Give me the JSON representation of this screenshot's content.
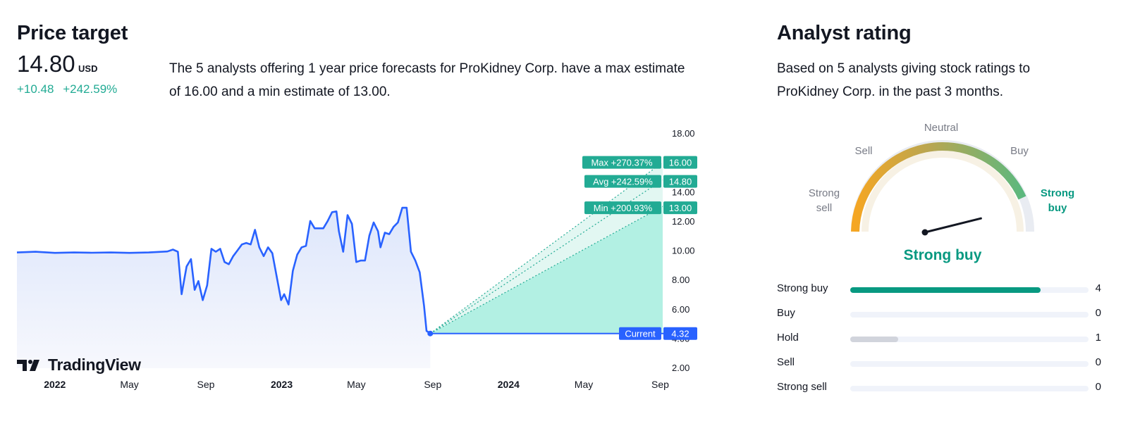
{
  "price_target": {
    "title": "Price target",
    "price": "14.80",
    "currency": "USD",
    "change_abs": "+10.48",
    "change_pct": "+242.59%",
    "description": "The 5 analysts offering 1 year price forecasts for ProKidney Corp. have a max estimate of 16.00 and a min estimate of 13.00.",
    "branding": "TradingView"
  },
  "analyst_rating": {
    "title": "Analyst rating",
    "description": "Based on 5 analysts giving stock ratings to ProKidney Corp. in the past 3 months.",
    "gauge": {
      "labels": [
        "Strong sell",
        "Sell",
        "Neutral",
        "Buy",
        "Strong buy"
      ],
      "active": "Strong buy",
      "verdict": "Strong buy",
      "needle_position": 0.9
    },
    "breakdown": [
      {
        "label": "Strong buy",
        "count": "4",
        "fraction": 0.8,
        "color": "#089981"
      },
      {
        "label": "Buy",
        "count": "0",
        "fraction": 0,
        "color": "#089981"
      },
      {
        "label": "Hold",
        "count": "1",
        "fraction": 0.2,
        "color": "#d1d4dc"
      },
      {
        "label": "Sell",
        "count": "0",
        "fraction": 0,
        "color": "#d1d4dc"
      },
      {
        "label": "Strong sell",
        "count": "0",
        "fraction": 0,
        "color": "#d1d4dc"
      }
    ]
  },
  "chart_data": {
    "type": "line",
    "title": "",
    "xlabel": "",
    "ylabel": "",
    "ylim": [
      2,
      18
    ],
    "yticks": [
      "2.00",
      "4.00",
      "6.00",
      "8.00",
      "10.00",
      "12.00",
      "14.00",
      "18.00"
    ],
    "xticks": [
      {
        "label": "2022",
        "bold": true,
        "date": "2022-01"
      },
      {
        "label": "May",
        "bold": false,
        "date": "2022-05"
      },
      {
        "label": "Sep",
        "bold": false,
        "date": "2022-09"
      },
      {
        "label": "2023",
        "bold": true,
        "date": "2023-01"
      },
      {
        "label": "May",
        "bold": false,
        "date": "2023-05"
      },
      {
        "label": "Sep",
        "bold": false,
        "date": "2023-09"
      },
      {
        "label": "2024",
        "bold": true,
        "date": "2024-01"
      },
      {
        "label": "May",
        "bold": false,
        "date": "2024-05"
      },
      {
        "label": "Sep",
        "bold": false,
        "date": "2024-09"
      }
    ],
    "series": [
      {
        "points": [
          [
            "2021-11-01",
            9.85
          ],
          [
            "2021-12-01",
            9.9
          ],
          [
            "2022-01-01",
            9.82
          ],
          [
            "2022-02-01",
            9.85
          ],
          [
            "2022-03-01",
            9.83
          ],
          [
            "2022-04-01",
            9.85
          ],
          [
            "2022-05-01",
            9.82
          ],
          [
            "2022-06-01",
            9.85
          ],
          [
            "2022-07-01",
            9.92
          ],
          [
            "2022-07-10",
            10.05
          ],
          [
            "2022-07-18",
            9.9
          ],
          [
            "2022-07-24",
            7.0
          ],
          [
            "2022-08-01",
            8.9
          ],
          [
            "2022-08-08",
            9.4
          ],
          [
            "2022-08-14",
            7.3
          ],
          [
            "2022-08-20",
            7.9
          ],
          [
            "2022-08-27",
            6.6
          ],
          [
            "2022-09-03",
            7.6
          ],
          [
            "2022-09-10",
            10.1
          ],
          [
            "2022-09-17",
            9.9
          ],
          [
            "2022-09-24",
            10.1
          ],
          [
            "2022-10-01",
            9.2
          ],
          [
            "2022-10-08",
            9.05
          ],
          [
            "2022-10-15",
            9.6
          ],
          [
            "2022-10-22",
            10.0
          ],
          [
            "2022-10-29",
            10.4
          ],
          [
            "2022-11-05",
            10.5
          ],
          [
            "2022-11-12",
            10.4
          ],
          [
            "2022-11-19",
            11.4
          ],
          [
            "2022-11-26",
            10.2
          ],
          [
            "2022-12-03",
            9.6
          ],
          [
            "2022-12-10",
            10.2
          ],
          [
            "2022-12-17",
            9.8
          ],
          [
            "2022-12-24",
            8.2
          ],
          [
            "2022-12-31",
            6.6
          ],
          [
            "2023-01-05",
            7.0
          ],
          [
            "2023-01-12",
            6.3
          ],
          [
            "2023-01-19",
            8.6
          ],
          [
            "2023-01-26",
            9.7
          ],
          [
            "2023-02-02",
            10.2
          ],
          [
            "2023-02-09",
            10.3
          ],
          [
            "2023-02-16",
            12.0
          ],
          [
            "2023-02-23",
            11.5
          ],
          [
            "2023-03-02",
            11.5
          ],
          [
            "2023-03-09",
            11.5
          ],
          [
            "2023-03-16",
            12.0
          ],
          [
            "2023-03-23",
            12.6
          ],
          [
            "2023-03-30",
            12.65
          ],
          [
            "2023-04-03",
            11.3
          ],
          [
            "2023-04-10",
            9.9
          ],
          [
            "2023-04-17",
            12.4
          ],
          [
            "2023-04-24",
            11.8
          ],
          [
            "2023-05-01",
            9.2
          ],
          [
            "2023-05-08",
            9.3
          ],
          [
            "2023-05-15",
            9.3
          ],
          [
            "2023-05-22",
            11.0
          ],
          [
            "2023-05-29",
            11.9
          ],
          [
            "2023-06-05",
            11.3
          ],
          [
            "2023-06-09",
            10.2
          ],
          [
            "2023-06-16",
            11.2
          ],
          [
            "2023-06-23",
            11.1
          ],
          [
            "2023-06-30",
            11.6
          ],
          [
            "2023-07-07",
            11.9
          ],
          [
            "2023-07-14",
            12.9
          ],
          [
            "2023-07-21",
            12.9
          ],
          [
            "2023-07-28",
            9.9
          ],
          [
            "2023-08-04",
            9.3
          ],
          [
            "2023-08-11",
            8.5
          ],
          [
            "2023-08-18",
            6.2
          ],
          [
            "2023-08-22",
            4.5
          ],
          [
            "2023-08-28",
            4.32
          ]
        ]
      }
    ],
    "forecast": {
      "start": [
        "2023-08-28",
        4.32
      ],
      "end_date": "2024-08-28",
      "max": {
        "label": "Max",
        "pct": "+270.37%",
        "value": 16.0,
        "value_label": "16.00"
      },
      "avg": {
        "label": "Avg",
        "pct": "+242.59%",
        "value": 14.8,
        "value_label": "14.80"
      },
      "min": {
        "label": "Min",
        "pct": "+200.93%",
        "value": 13.0,
        "value_label": "13.00"
      },
      "current": {
        "label": "Current",
        "value": 4.32,
        "value_label": "4.32"
      }
    },
    "grid": false,
    "colors": {
      "line": "#2962ff",
      "forecast_fill": "#b2f0e3",
      "tag": "#22ab94",
      "current_tag": "#2962ff"
    }
  }
}
